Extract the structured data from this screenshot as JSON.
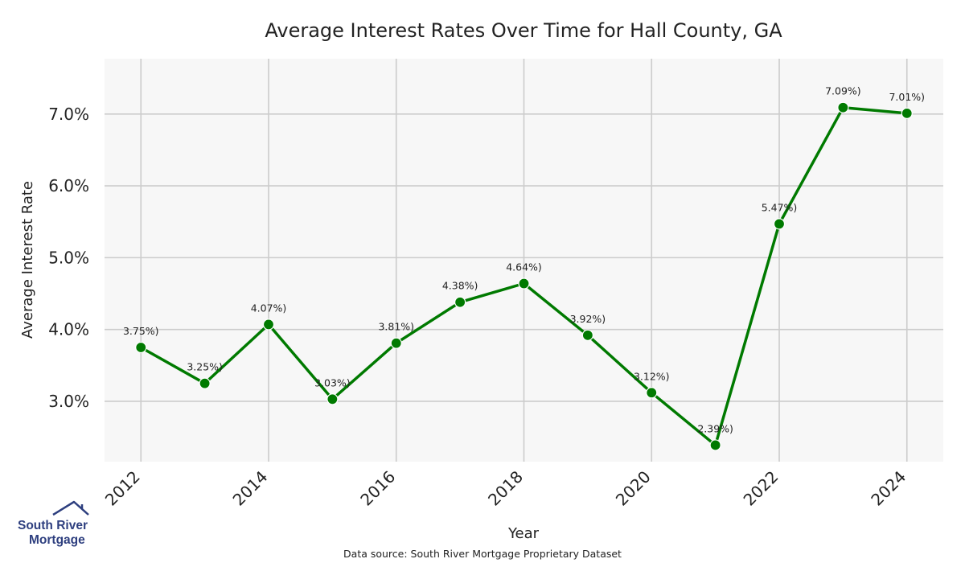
{
  "brand": {
    "logo_line1": "South River",
    "logo_line2": "Mortgage",
    "logo_color": "#2e3f7f"
  },
  "source_note": "Data source: South River Mortgage Proprietary Dataset",
  "chart_data": {
    "type": "line",
    "title": "Average Interest Rates Over Time for Hall County, GA",
    "xlabel": "Year",
    "ylabel": "Average Interest Rate",
    "x": [
      2012,
      2013,
      2014,
      2015,
      2016,
      2017,
      2018,
      2019,
      2020,
      2021,
      2022,
      2023,
      2024
    ],
    "values": [
      3.75,
      3.25,
      4.07,
      3.03,
      3.81,
      4.38,
      4.64,
      3.92,
      3.12,
      2.39,
      5.47,
      7.09,
      7.01
    ],
    "data_labels": [
      "3.75%)",
      "3.25%)",
      "4.07%)",
      "3.03%)",
      "3.81%)",
      "4.38%)",
      "4.64%)",
      "3.92%)",
      "3.12%)",
      "2.39%)",
      "5.47%)",
      "7.09%)",
      "7.01%)"
    ],
    "xticks": [
      2012,
      2014,
      2016,
      2018,
      2020,
      2022,
      2024
    ],
    "yticks": [
      3.0,
      4.0,
      5.0,
      6.0,
      7.0
    ],
    "ytick_labels": [
      "3.0%",
      "4.0%",
      "5.0%",
      "6.0%",
      "7.0%"
    ],
    "xlim": [
      2011.43,
      2024.57
    ],
    "ylim": [
      2.16,
      7.77
    ],
    "grid": true,
    "line_color": "#007a00",
    "plot_background": "#f7f7f7",
    "grid_color": "#cccccc"
  }
}
